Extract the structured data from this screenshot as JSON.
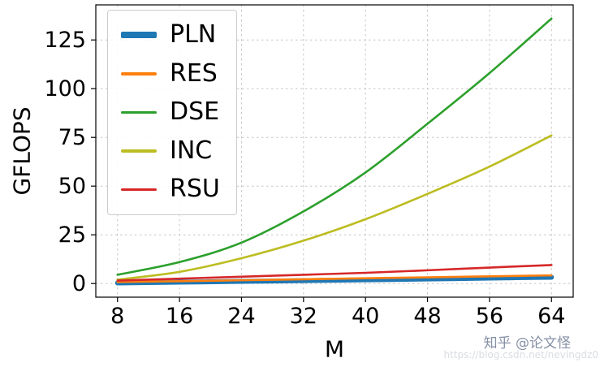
{
  "chart_data": {
    "type": "line",
    "title": "",
    "xlabel": "M",
    "ylabel": "GFLOPS",
    "x": [
      8,
      16,
      24,
      32,
      40,
      48,
      56,
      64
    ],
    "series": [
      {
        "name": "PLN",
        "color": "#1f77b4",
        "linewidth": 6,
        "values": [
          0.3,
          0.7,
          1.1,
          1.5,
          1.9,
          2.3,
          2.8,
          3.2
        ]
      },
      {
        "name": "RES",
        "color": "#ff7f0e",
        "linewidth": 2.6,
        "values": [
          0.8,
          1.2,
          1.7,
          2.2,
          2.7,
          3.2,
          3.7,
          4.2
        ]
      },
      {
        "name": "DSE",
        "color": "#2ca02c",
        "linewidth": 2.6,
        "values": [
          4.5,
          11,
          21,
          37,
          57,
          82,
          108,
          136
        ]
      },
      {
        "name": "INC",
        "color": "#bcbd22",
        "linewidth": 2.6,
        "values": [
          2,
          6,
          13,
          22,
          33,
          46,
          60,
          76
        ]
      },
      {
        "name": "RSU",
        "color": "#d62728",
        "linewidth": 2.6,
        "values": [
          1.5,
          2.5,
          3.5,
          4.5,
          5.5,
          6.8,
          8.2,
          9.5
        ]
      }
    ],
    "xticks": [
      8,
      16,
      24,
      32,
      40,
      48,
      56,
      64
    ],
    "yticks": [
      0,
      25,
      50,
      75,
      100,
      125
    ],
    "xlim": [
      5.2,
      66.8
    ],
    "ylim": [
      -7,
      143
    ],
    "grid": true,
    "legend_position": "upper-left"
  },
  "watermark": {
    "zhihu": "知乎 @论文怪",
    "csdn": "https://blog.csdn.net/nevingdz0"
  }
}
